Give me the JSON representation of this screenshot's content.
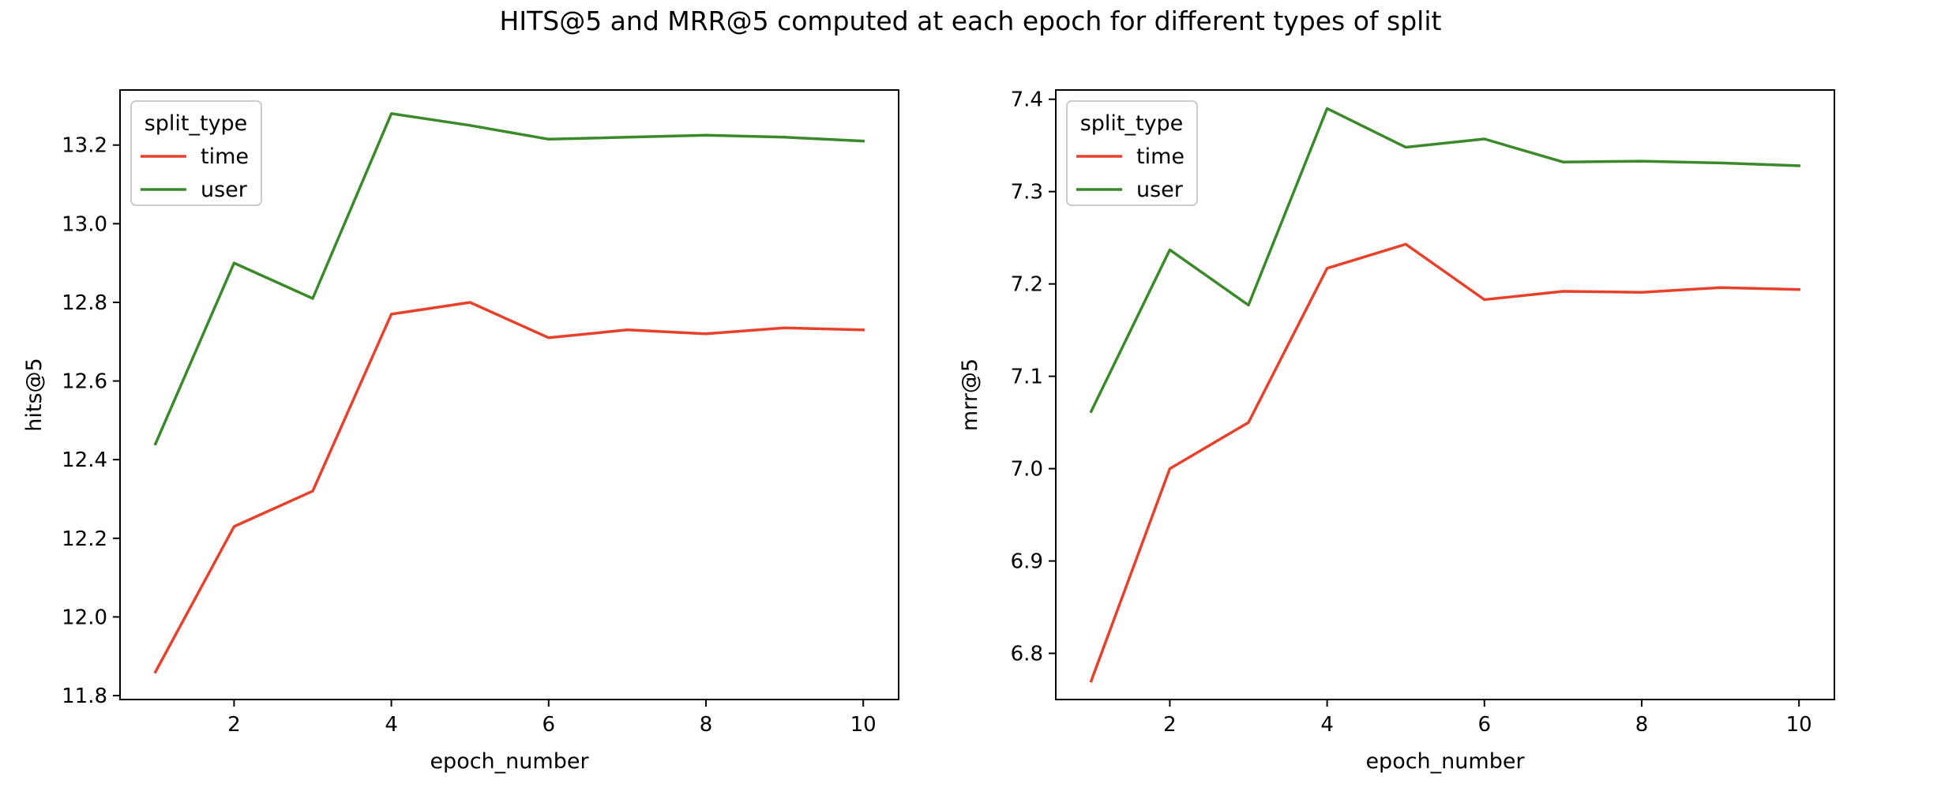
{
  "figure": {
    "title": "HITS@5 and MRR@5 computed at each epoch for different types of split"
  },
  "colors": {
    "time": "#e8412b",
    "user": "#3a8a2a",
    "axes": "#000000",
    "background": "#ffffff",
    "legend_border": "#cccccc"
  },
  "chart_data": [
    {
      "type": "line",
      "title": "",
      "xlabel": "epoch_number",
      "ylabel": "hits@5",
      "x": [
        1,
        2,
        3,
        4,
        5,
        6,
        7,
        8,
        9,
        10
      ],
      "xlim": [
        0.55,
        10.45
      ],
      "ylim": [
        11.79,
        13.34
      ],
      "xticks": [
        2,
        4,
        6,
        8,
        10
      ],
      "xtick_labels": [
        "2",
        "4",
        "6",
        "8",
        "10"
      ],
      "yticks": [
        11.8,
        12.0,
        12.2,
        12.4,
        12.6,
        12.8,
        13.0,
        13.2
      ],
      "ytick_labels": [
        "11.8",
        "12.0",
        "12.2",
        "12.4",
        "12.6",
        "12.8",
        "13.0",
        "13.2"
      ],
      "grid": false,
      "legend": {
        "title": "split_type",
        "placement": "upper-left",
        "entries": [
          "time",
          "user"
        ]
      },
      "series": [
        {
          "name": "time",
          "values": [
            11.86,
            12.23,
            12.32,
            12.77,
            12.8,
            12.71,
            12.73,
            12.72,
            12.735,
            12.73
          ]
        },
        {
          "name": "user",
          "values": [
            12.44,
            12.9,
            12.81,
            13.28,
            13.25,
            13.215,
            13.22,
            13.225,
            13.22,
            13.21
          ]
        }
      ]
    },
    {
      "type": "line",
      "title": "",
      "xlabel": "epoch_number",
      "ylabel": "mrr@5",
      "x": [
        1,
        2,
        3,
        4,
        5,
        6,
        7,
        8,
        9,
        10
      ],
      "xlim": [
        0.55,
        10.45
      ],
      "ylim": [
        6.75,
        7.41
      ],
      "xticks": [
        2,
        4,
        6,
        8,
        10
      ],
      "xtick_labels": [
        "2",
        "4",
        "6",
        "8",
        "10"
      ],
      "yticks": [
        6.8,
        6.9,
        7.0,
        7.1,
        7.2,
        7.3,
        7.4
      ],
      "ytick_labels": [
        "6.8",
        "6.9",
        "7.0",
        "7.1",
        "7.2",
        "7.3",
        "7.4"
      ],
      "grid": false,
      "legend": {
        "title": "split_type",
        "placement": "upper-left",
        "entries": [
          "time",
          "user"
        ]
      },
      "series": [
        {
          "name": "time",
          "values": [
            6.77,
            7.0,
            7.05,
            7.217,
            7.243,
            7.183,
            7.192,
            7.191,
            7.196,
            7.194
          ]
        },
        {
          "name": "user",
          "values": [
            7.062,
            7.237,
            7.177,
            7.39,
            7.348,
            7.357,
            7.332,
            7.333,
            7.331,
            7.328
          ]
        }
      ]
    }
  ]
}
